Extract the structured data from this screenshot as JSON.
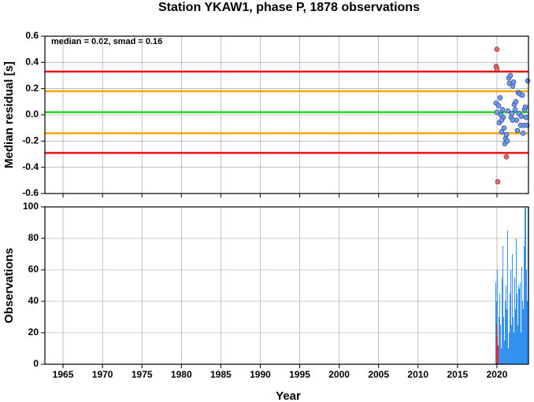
{
  "chart_data": [
    {
      "type": "scatter",
      "title": "Station YKAW1, phase P, 1878 observations",
      "ylabel": "Median residual [s]",
      "annotation": "median = 0.02, smad = 0.16",
      "ylim": [
        -0.6,
        0.6
      ],
      "yticks": [
        0.6,
        0.4,
        0.2,
        {
          "value": 0,
          "label": "0.0"
        },
        -0.2,
        -0.4,
        -0.6
      ],
      "grid": true,
      "hlines": [
        {
          "value": 0.33,
          "color": "#ee1111"
        },
        {
          "value": 0.18,
          "color": "#ffa500"
        },
        {
          "value": 0.02,
          "color": "#22dd22"
        },
        {
          "value": -0.14,
          "color": "#ffa500"
        },
        {
          "value": -0.29,
          "color": "#ee1111"
        }
      ],
      "series": [
        {
          "color": "#6a9cff",
          "x": [
            2019.9,
            2020.0,
            2020.2,
            2020.3,
            2020.4,
            2020.5,
            2020.6,
            2020.7,
            2020.8,
            2020.9,
            2021.0,
            2021.1,
            2021.2,
            2021.3,
            2021.4,
            2021.5,
            2021.6,
            2021.7,
            2021.8,
            2022.0,
            2022.1,
            2022.2,
            2022.3,
            2022.4,
            2022.5,
            2022.6,
            2022.7,
            2022.8,
            2022.9,
            2023.0,
            2023.1,
            2023.2,
            2023.3,
            2023.4,
            2023.5,
            2023.6,
            2023.7,
            2023.8,
            2023.9,
            2022.0,
            2021.9,
            2020.6
          ],
          "values": [
            0.09,
            0.02,
            0.07,
            -0.06,
            0.13,
            0.0,
            -0.13,
            0.04,
            -0.02,
            -0.1,
            -0.22,
            -0.18,
            -0.15,
            -0.2,
            0.03,
            0.28,
            0.24,
            0.3,
            -0.02,
            0.22,
            0.25,
            0.08,
            0.04,
            0.1,
            -0.04,
            -0.12,
            0.17,
            0.01,
            0.16,
            -0.08,
            -0.01,
            0.15,
            -0.14,
            -0.08,
            0.04,
            0.06,
            -0.02,
            -0.08,
            0.26,
            -0.04,
            0.01,
            -0.04
          ]
        },
        {
          "color": "#ff6655",
          "x": [
            2019.9,
            2020.0,
            2020.0,
            2020.1,
            2021.2
          ],
          "values": [
            0.37,
            0.5,
            0.35,
            -0.51,
            -0.32
          ]
        }
      ]
    },
    {
      "type": "bar",
      "xlabel": "Year",
      "ylabel": "Observations",
      "xlim": [
        1962.7,
        2024.0
      ],
      "xticks": [
        1965,
        1970,
        1975,
        1980,
        1985,
        1990,
        1995,
        2000,
        2005,
        2010,
        2015,
        2020
      ],
      "ylim": [
        0,
        100
      ],
      "yticks": [
        0,
        20,
        40,
        60,
        80,
        100
      ],
      "grid": true,
      "series": [
        {
          "color": "#2f8fef",
          "bins": [
            2019.8,
            2019.9,
            2020.0,
            2020.1,
            2020.2,
            2020.3,
            2020.4,
            2020.5,
            2020.6,
            2020.7,
            2020.8,
            2020.9,
            2021.0,
            2021.1,
            2021.2,
            2021.3,
            2021.4,
            2021.5,
            2021.6,
            2021.7,
            2021.8,
            2021.9,
            2022.0,
            2022.1,
            2022.2,
            2022.3,
            2022.4,
            2022.5,
            2022.6,
            2022.7,
            2022.8,
            2022.9,
            2023.0,
            2023.1,
            2023.2,
            2023.3,
            2023.4,
            2023.5,
            2023.6,
            2023.7,
            2023.8,
            2023.9,
            2024.0
          ],
          "values": [
            52,
            40,
            60,
            12,
            30,
            45,
            25,
            10,
            55,
            75,
            30,
            15,
            40,
            50,
            35,
            85,
            10,
            20,
            45,
            60,
            25,
            70,
            30,
            20,
            55,
            35,
            80,
            45,
            25,
            50,
            48,
            52,
            20,
            62,
            40,
            35,
            75,
            99,
            100,
            60,
            40,
            100
          ]
        },
        {
          "color": "#ee2222",
          "bins": [
            2019.9,
            2020.0,
            2020.1,
            2020.2
          ],
          "values": [
            26,
            18,
            12
          ]
        }
      ]
    }
  ]
}
